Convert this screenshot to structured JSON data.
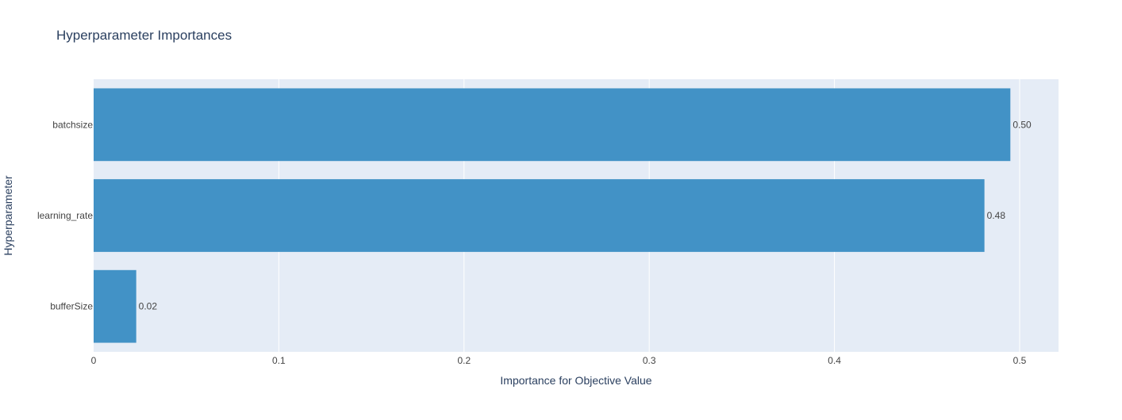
{
  "chart_data": {
    "type": "bar",
    "orientation": "horizontal",
    "title": "Hyperparameter Importances",
    "xlabel": "Importance for Objective Value",
    "ylabel": "Hyperparameter",
    "categories": [
      "batchsize",
      "learning_rate",
      "bufferSize"
    ],
    "values": [
      0.495,
      0.481,
      0.023
    ],
    "value_labels": [
      "0.50",
      "0.48",
      "0.02"
    ],
    "xlim": [
      0,
      0.521
    ],
    "xticks": [
      0,
      0.1,
      0.2,
      0.3,
      0.4,
      0.5
    ],
    "xtick_labels": [
      "0",
      "0.1",
      "0.2",
      "0.3",
      "0.4",
      "0.5"
    ],
    "grid": true,
    "legend": "none"
  },
  "colors": {
    "plot_background": "#e5ecf6",
    "bar": "#4292c6",
    "gridline": "#ffffff",
    "text": "#2a3f5f",
    "tick_text": "#444444"
  }
}
